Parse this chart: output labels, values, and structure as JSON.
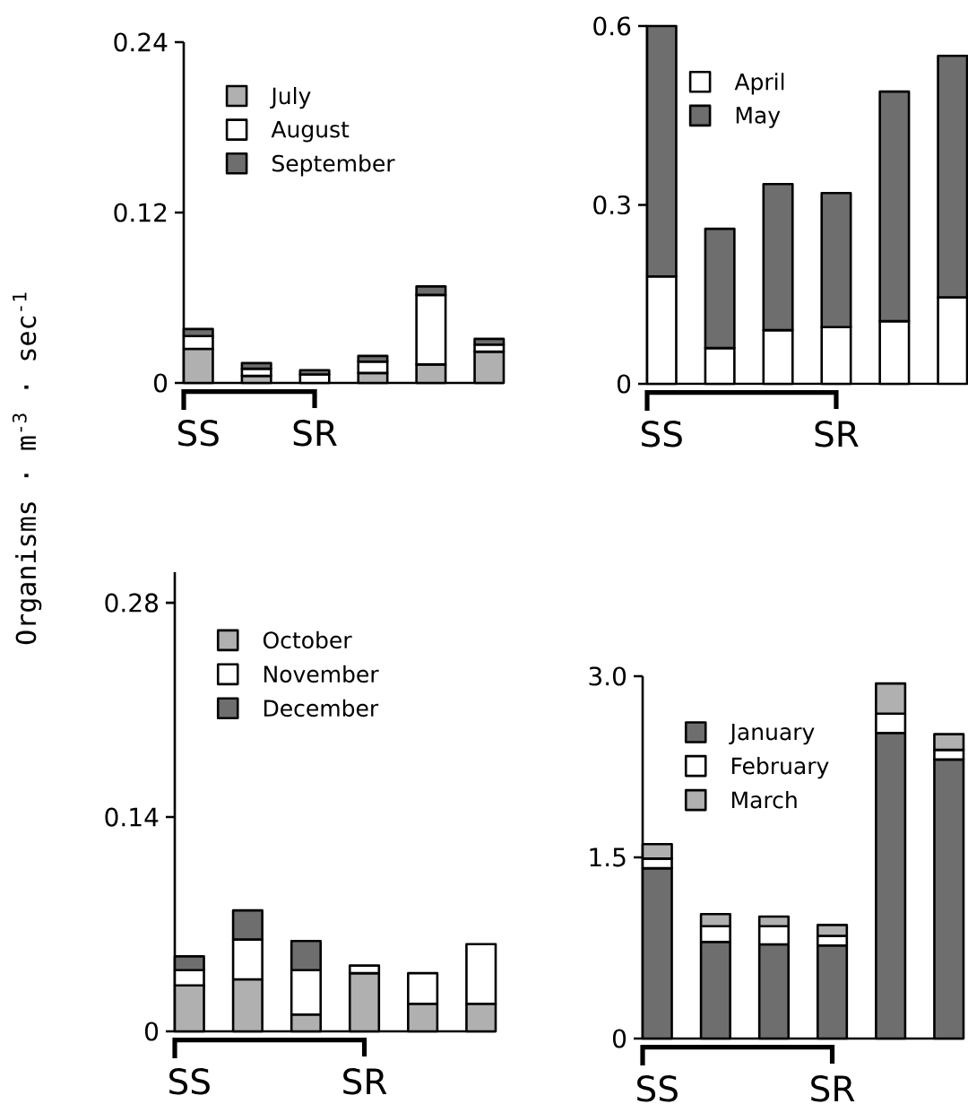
{
  "chart_data": [
    {
      "type": "bar",
      "stacked": true,
      "categories": [
        "SS",
        null,
        "SR",
        null,
        null,
        null
      ],
      "ylabel": "Organisms · m$^{-3}$ · sec$^{-1}$",
      "ylim": [
        0,
        0.24
      ],
      "yticks": [
        0,
        0.12,
        0.24
      ],
      "legend": "top left",
      "series": [
        {
          "name": "July",
          "color": "#b0b0b0",
          "values": [
            0.024,
            0.005,
            0,
            0.007,
            0.013,
            0.022
          ]
        },
        {
          "name": "August",
          "color": "#ffffff",
          "values": [
            0.009,
            0.005,
            0.006,
            0.008,
            0.049,
            0.005
          ]
        },
        {
          "name": "September",
          "color": "#6e6e6e",
          "values": [
            0.005,
            0.004,
            0.003,
            0.004,
            0.006,
            0.004
          ]
        }
      ]
    },
    {
      "type": "bar",
      "stacked": true,
      "categories": [
        "SS",
        null,
        null,
        "SR",
        null,
        null
      ],
      "ylim": [
        0,
        0.6
      ],
      "yticks": [
        0,
        0.3,
        0.6
      ],
      "legend": "top left",
      "series": [
        {
          "name": "April",
          "color": "#ffffff",
          "values": [
            0.18,
            0.06,
            0.09,
            0.095,
            0.105,
            0.145
          ]
        },
        {
          "name": "May",
          "color": "#6e6e6e",
          "values": [
            0.42,
            0.2,
            0.245,
            0.225,
            0.385,
            0.405
          ]
        }
      ]
    },
    {
      "type": "bar",
      "stacked": true,
      "categories": [
        "SS",
        null,
        null,
        "SR",
        null,
        null
      ],
      "ylim": [
        0,
        0.3
      ],
      "yticks": [
        0,
        0.14,
        0.28
      ],
      "legend": "top left",
      "series": [
        {
          "name": "October",
          "color": "#b0b0b0",
          "values": [
            0.03,
            0.034,
            0.011,
            0.038,
            0.018,
            0.018
          ]
        },
        {
          "name": "November",
          "color": "#ffffff",
          "values": [
            0.01,
            0.026,
            0.029,
            0.005,
            0.02,
            0.039
          ]
        },
        {
          "name": "December",
          "color": "#6e6e6e",
          "values": [
            0.009,
            0.019,
            0.019,
            0,
            0,
            0
          ]
        }
      ]
    },
    {
      "type": "bar",
      "stacked": true,
      "categories": [
        "SS",
        null,
        null,
        "SR",
        null,
        null
      ],
      "ylim": [
        0,
        3.0
      ],
      "yticks": [
        0,
        1.5,
        {
          "value": 3.0,
          "label": "3.0"
        }
      ],
      "legend": "top left",
      "series": [
        {
          "name": "January",
          "color": "#6e6e6e",
          "values": [
            1.41,
            0.8,
            0.78,
            0.77,
            2.53,
            2.31
          ]
        },
        {
          "name": "February",
          "color": "#ffffff",
          "values": [
            0.08,
            0.13,
            0.15,
            0.08,
            0.16,
            0.08
          ]
        },
        {
          "name": "March",
          "color": "#b0b0b0",
          "values": [
            0.12,
            0.1,
            0.08,
            0.09,
            0.25,
            0.13
          ]
        }
      ]
    }
  ]
}
